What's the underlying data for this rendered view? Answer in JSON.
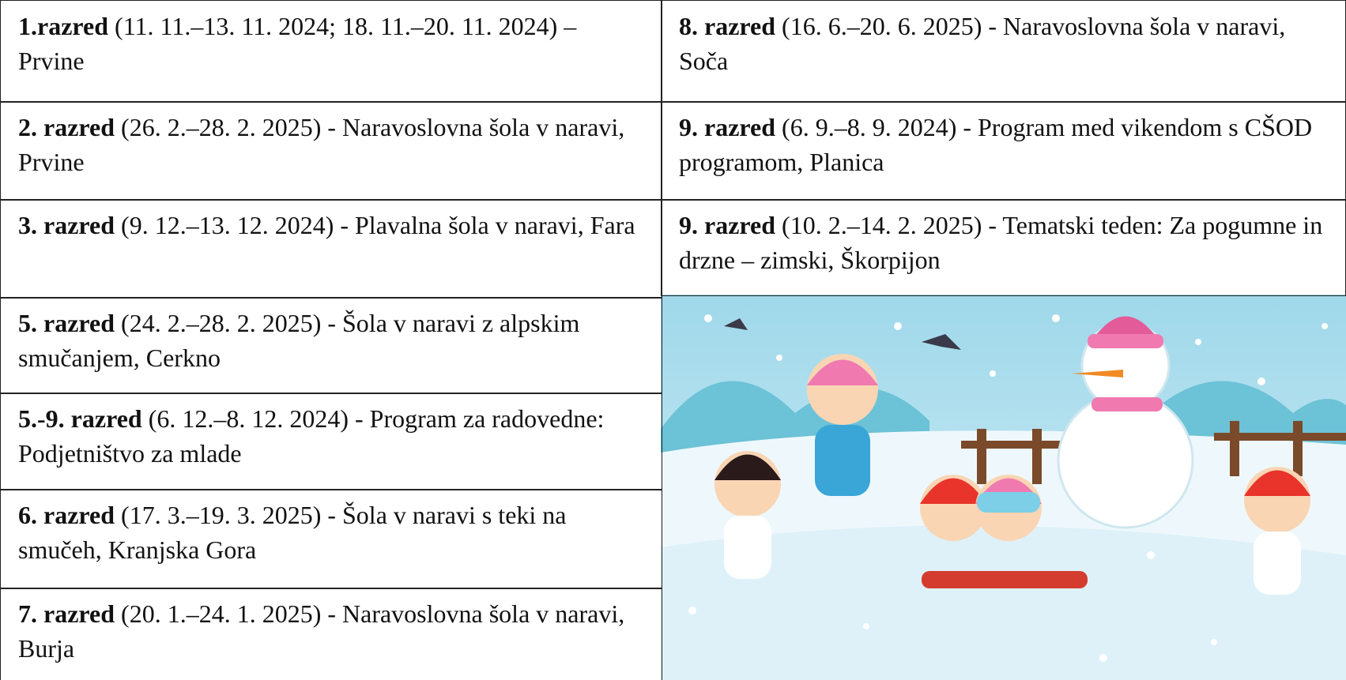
{
  "left_cells": [
    {
      "bold": "1.razred",
      "text": "(11. 11.–13. 11. 2024; 18. 11.–20. 11. 2024) – Prvine"
    },
    {
      "bold": "2. razred",
      "text": "(26. 2.–28. 2. 2025) - Naravoslovna šola v naravi, Prvine"
    },
    {
      "bold": "3. razred",
      "text": "(9. 12.–13. 12. 2024) - Plavalna šola v naravi, Fara"
    },
    {
      "bold": "5. razred",
      "text": "(24. 2.–28. 2. 2025) - Šola v naravi z alpskim smučanjem, Cerkno"
    },
    {
      "bold": "5.-9. razred",
      "text": "(6. 12.–8. 12. 2024) - Program za radovedne: Podjetništvo za mlade"
    },
    {
      "bold": "6. razred",
      "text": "(17. 3.–19. 3. 2025) - Šola v naravi s teki na smučeh, Kranjska Gora"
    },
    {
      "bold": "7. razred",
      "text": "(20. 1.–24. 1. 2025) - Naravoslovna šola v naravi, Burja"
    }
  ],
  "right_cells": [
    {
      "bold": "8. razred",
      "text": "(16. 6.–20. 6. 2025) - Naravoslovna šola v naravi, Soča"
    },
    {
      "bold": "9. razred",
      "text": "(6. 9.–8. 9. 2024) - Program med vikendom s CŠOD programom, Planica"
    },
    {
      "bold": "9. razred",
      "text": "(10. 2.–14. 2. 2025) - Tematski teden: Za pogumne in drzne – zimski, Škorpijon"
    }
  ]
}
